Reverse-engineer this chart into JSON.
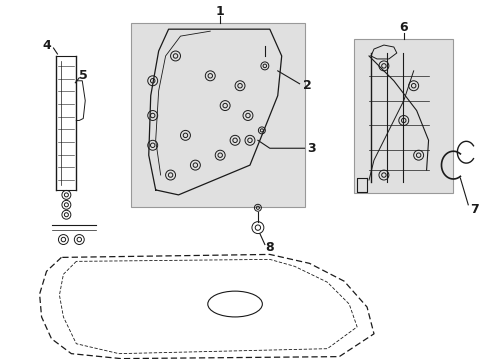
{
  "bg_color": "#ffffff",
  "line_color": "#1a1a1a",
  "box_fill": "#e0e0e0",
  "box_edge": "#999999",
  "figsize": [
    4.89,
    3.6
  ],
  "dpi": 100
}
